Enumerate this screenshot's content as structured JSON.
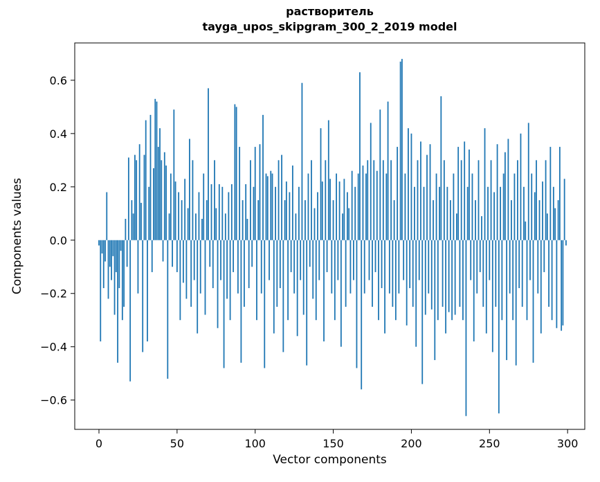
{
  "chart_data": {
    "type": "bar",
    "title": "растворитель",
    "subtitle": "tayga_upos_skipgram_300_2_2019 model",
    "xlabel": "Vector components",
    "ylabel": "Components values",
    "xlim": [
      -15.5,
      311
    ],
    "ylim": [
      -0.71,
      0.74
    ],
    "xticks": [
      0,
      50,
      100,
      150,
      200,
      250,
      300
    ],
    "yticks": [
      -0.6,
      -0.4,
      -0.2,
      0.0,
      0.2,
      0.4,
      0.6
    ],
    "bar_color": "#1f77b4",
    "axis_color": "#000000",
    "values": [
      -0.02,
      -0.38,
      -0.05,
      -0.18,
      -0.08,
      0.18,
      -0.22,
      -0.1,
      -0.15,
      -0.06,
      -0.28,
      -0.12,
      -0.46,
      -0.18,
      -0.04,
      -0.3,
      -0.25,
      0.08,
      -0.1,
      0.31,
      -0.53,
      0.15,
      0.1,
      0.32,
      0.3,
      -0.2,
      0.36,
      0.14,
      -0.42,
      0.32,
      0.45,
      -0.38,
      0.2,
      0.47,
      -0.12,
      0.27,
      0.53,
      0.52,
      0.35,
      0.42,
      0.3,
      -0.08,
      0.33,
      0.28,
      -0.52,
      0.1,
      0.25,
      -0.1,
      0.49,
      0.22,
      -0.12,
      0.18,
      -0.3,
      0.15,
      -0.16,
      0.23,
      -0.22,
      0.12,
      0.38,
      -0.25,
      0.3,
      -0.15,
      0.1,
      -0.35,
      0.18,
      -0.2,
      0.08,
      0.25,
      -0.28,
      0.15,
      0.57,
      -0.1,
      0.21,
      -0.18,
      0.3,
      0.12,
      -0.33,
      0.21,
      -0.15,
      0.2,
      -0.48,
      0.1,
      -0.22,
      0.18,
      -0.3,
      0.21,
      -0.12,
      0.51,
      0.5,
      -0.2,
      0.35,
      -0.46,
      0.15,
      -0.25,
      0.21,
      0.08,
      -0.18,
      0.3,
      -0.1,
      0.2,
      0.35,
      -0.3,
      0.15,
      0.36,
      -0.2,
      0.47,
      -0.48,
      0.25,
      0.24,
      -0.15,
      0.26,
      0.25,
      -0.35,
      0.2,
      -0.25,
      0.3,
      -0.18,
      0.32,
      -0.42,
      0.15,
      0.22,
      -0.3,
      0.18,
      -0.12,
      0.28,
      -0.2,
      0.1,
      -0.36,
      0.2,
      -0.15,
      0.59,
      -0.28,
      0.15,
      -0.47,
      0.25,
      -0.1,
      0.3,
      -0.22,
      0.12,
      -0.3,
      0.18,
      -0.15,
      0.42,
      0.22,
      -0.38,
      0.3,
      -0.12,
      0.45,
      0.23,
      -0.2,
      0.15,
      -0.3,
      0.25,
      -0.15,
      0.22,
      -0.4,
      0.1,
      0.23,
      -0.25,
      0.18,
      0.12,
      -0.2,
      0.26,
      -0.15,
      0.2,
      -0.48,
      0.25,
      0.63,
      -0.56,
      0.28,
      -0.2,
      0.25,
      0.3,
      -0.15,
      0.44,
      -0.25,
      0.3,
      -0.12,
      0.26,
      -0.3,
      0.49,
      -0.18,
      0.3,
      -0.35,
      0.25,
      0.52,
      -0.2,
      0.3,
      -0.25,
      0.15,
      -0.3,
      0.35,
      -0.2,
      0.67,
      0.68,
      -0.15,
      0.25,
      -0.32,
      0.42,
      -0.18,
      0.4,
      -0.25,
      0.2,
      -0.4,
      0.3,
      -0.15,
      0.37,
      -0.54,
      0.2,
      -0.28,
      0.32,
      -0.2,
      0.36,
      -0.26,
      0.15,
      -0.45,
      0.25,
      -0.3,
      0.2,
      0.54,
      -0.25,
      0.3,
      -0.35,
      0.2,
      -0.27,
      0.15,
      -0.3,
      0.25,
      -0.28,
      0.1,
      0.35,
      -0.25,
      0.3,
      -0.3,
      0.37,
      -0.66,
      0.2,
      0.34,
      -0.15,
      0.25,
      -0.38,
      0.15,
      -0.2,
      0.3,
      -0.12,
      0.09,
      -0.25,
      0.42,
      -0.35,
      0.2,
      -0.15,
      0.3,
      -0.42,
      0.18,
      -0.25,
      0.36,
      -0.65,
      0.2,
      -0.3,
      0.25,
      0.33,
      -0.45,
      0.38,
      -0.2,
      0.15,
      -0.3,
      0.25,
      -0.47,
      0.3,
      -0.18,
      0.4,
      -0.25,
      0.2,
      0.07,
      -0.3,
      0.44,
      -0.15,
      0.25,
      -0.46,
      0.18,
      0.3,
      -0.2,
      0.15,
      -0.35,
      0.22,
      -0.12,
      0.3,
      0.1,
      -0.25,
      0.35,
      -0.3,
      0.2,
      0.12,
      -0.33,
      0.15,
      0.35,
      -0.34,
      -0.32,
      0.23,
      -0.02
    ]
  }
}
